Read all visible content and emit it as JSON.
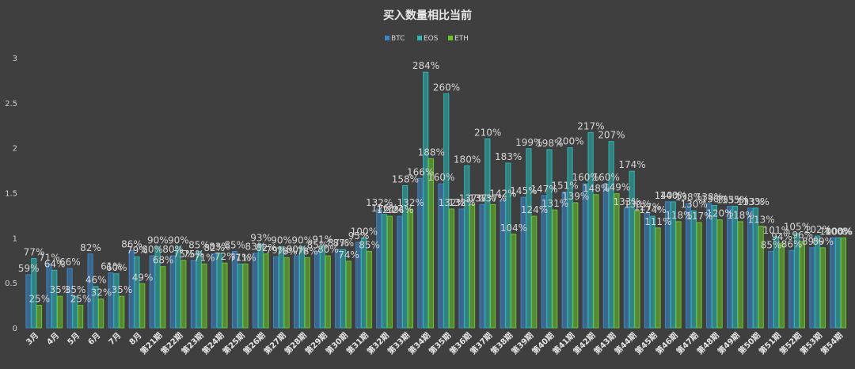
{
  "chart_data": {
    "type": "bar",
    "title": "买入数量相比当前",
    "xlabel": "",
    "ylabel": "",
    "ylim": [
      0,
      3
    ],
    "yticks": [
      "0",
      "0.5",
      "1",
      "1.5",
      "2",
      "2.5",
      "3"
    ],
    "grid": false,
    "legend_position": "top-center",
    "categories": [
      "3月",
      "4月",
      "5月",
      "6月",
      "7月",
      "8月",
      "第21期",
      "第22期",
      "第23期",
      "第24期",
      "第25期",
      "第26期",
      "第27期",
      "第28期",
      "第29期",
      "第30期",
      "第31期",
      "第32期",
      "第33期",
      "第34期",
      "第35期",
      "第36期",
      "第37期",
      "第38期",
      "第39期",
      "第40期",
      "第41期",
      "第42期",
      "第43期",
      "第44期",
      "第45期",
      "第46期",
      "第47期",
      "第48期",
      "第49期",
      "第50期",
      "第51期",
      "第52期",
      "第53期",
      "第54期"
    ],
    "series": [
      {
        "name": "BTC",
        "color": "#3a86c8",
        "values": [
          0.59,
          0.71,
          0.66,
          0.82,
          0.61,
          0.86,
          0.8,
          0.8,
          0.75,
          0.82,
          0.85,
          0.83,
          0.79,
          0.8,
          0.85,
          0.87,
          0.95,
          1.32,
          1.24,
          1.66,
          1.6,
          1.32,
          1.37,
          1.42,
          1.45,
          1.47,
          1.51,
          1.6,
          1.6,
          1.33,
          1.27,
          1.4,
          1.38,
          1.38,
          1.35,
          1.33,
          0.85,
          0.86,
          0.89,
          1.0
        ],
        "labels": [
          "59%",
          "71%",
          "66%",
          "82%",
          "61%",
          "86%",
          "80%",
          "80%",
          "75%",
          "82%",
          "85%",
          "83%",
          "79%",
          "80%",
          "85%",
          "87%",
          "95%",
          "132%",
          "124%",
          "166%",
          "160%",
          "132%",
          "137%",
          "142%",
          "145%",
          "147%",
          "151%",
          "160%",
          "160%",
          "133%",
          "127%",
          "140%",
          "138%",
          "138%",
          "135%",
          "133%",
          "85%",
          "86%",
          "89%",
          "100%"
        ]
      },
      {
        "name": "EOS",
        "color": "#2ab7b5",
        "values": [
          0.77,
          0.64,
          0.35,
          0.46,
          0.6,
          0.79,
          0.9,
          0.9,
          0.85,
          0.83,
          0.71,
          0.93,
          0.9,
          0.9,
          0.91,
          0.87,
          1.0,
          1.26,
          1.58,
          2.84,
          2.6,
          1.8,
          2.1,
          1.83,
          1.99,
          1.98,
          2.0,
          2.17,
          2.07,
          1.74,
          1.24,
          1.4,
          1.3,
          1.36,
          1.35,
          1.33,
          1.01,
          1.05,
          1.02,
          1.0
        ],
        "labels": [
          "77%",
          "64%",
          "35%",
          "46%",
          "60%",
          "79%",
          "90%",
          "90%",
          "85%",
          "83%",
          "71%",
          "93%",
          "90%",
          "90%",
          "91%",
          "87%",
          "100%",
          "126%",
          "158%",
          "284%",
          "260%",
          "180%",
          "210%",
          "183%",
          "199%",
          "198%",
          "200%",
          "217%",
          "207%",
          "174%",
          "124%",
          "140%",
          "130%",
          "136%",
          "135%",
          "133%",
          "101%",
          "105%",
          "102%",
          "100%"
        ]
      },
      {
        "name": "ETH",
        "color": "#6ac42e",
        "values": [
          0.25,
          0.35,
          0.25,
          0.32,
          0.35,
          0.49,
          0.68,
          0.75,
          0.71,
          0.72,
          0.71,
          0.82,
          0.78,
          0.78,
          0.8,
          0.74,
          0.85,
          1.24,
          1.32,
          1.88,
          1.32,
          1.37,
          1.37,
          1.04,
          1.24,
          1.31,
          1.39,
          1.48,
          1.49,
          1.3,
          1.11,
          1.18,
          1.17,
          1.2,
          1.18,
          1.13,
          0.94,
          0.96,
          0.89,
          1.0
        ],
        "labels": [
          "25%",
          "35%",
          "25%",
          "32%",
          "35%",
          "49%",
          "68%",
          "75%",
          "71%",
          "72%",
          "71%",
          "82%",
          "78%",
          "78%",
          "80%",
          "74%",
          "85%",
          "124%",
          "132%",
          "188%",
          "132%",
          "137%",
          "137%",
          "104%",
          "124%",
          "131%",
          "139%",
          "148%",
          "149%",
          "130%",
          "111%",
          "118%",
          "117%",
          "120%",
          "118%",
          "113%",
          "94%",
          "96%",
          "89%",
          "100%"
        ]
      }
    ]
  }
}
